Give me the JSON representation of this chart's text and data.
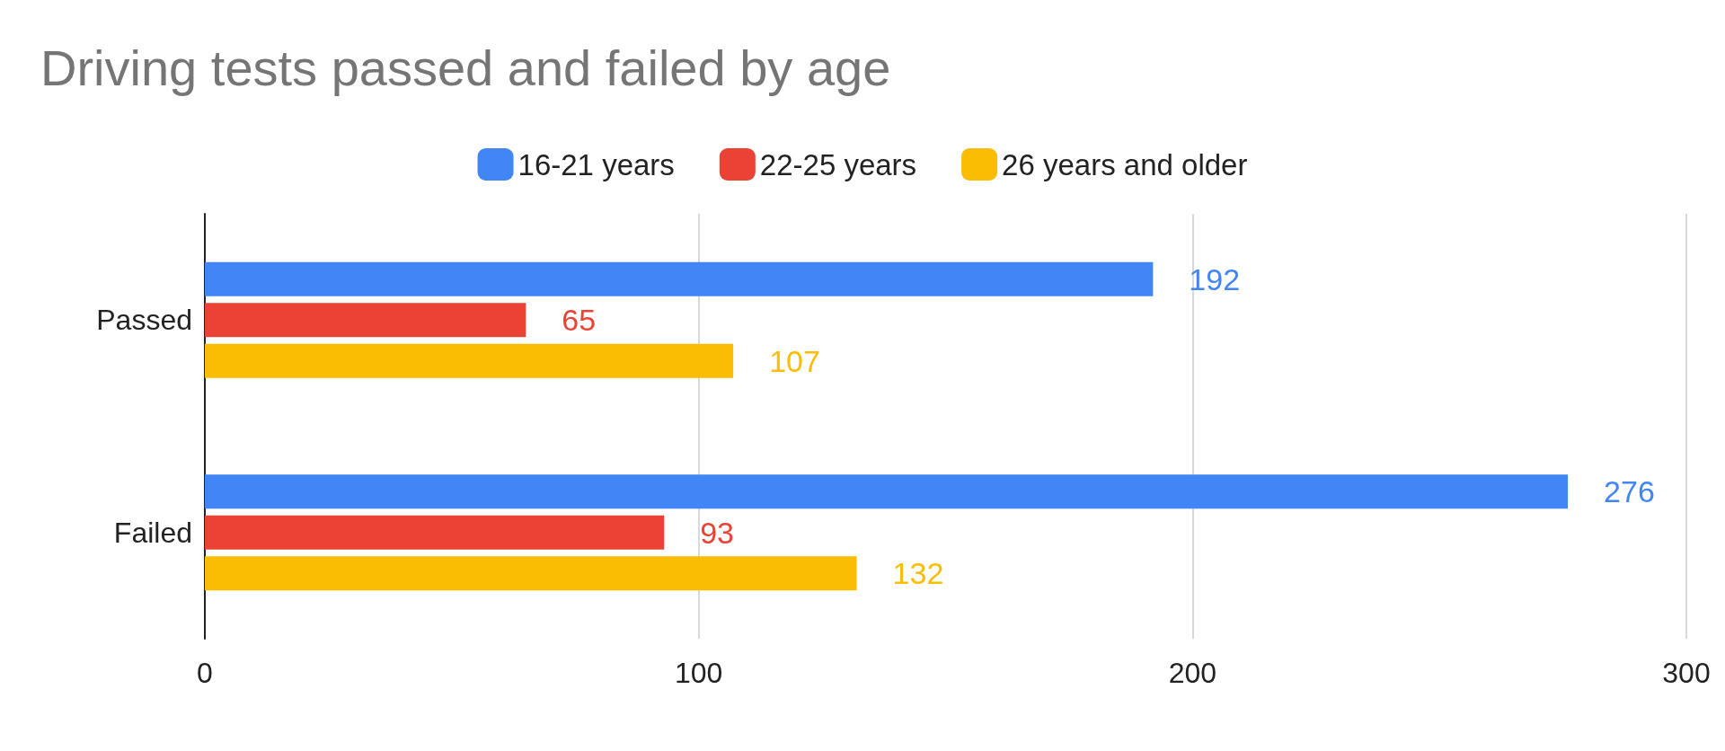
{
  "chart_data": {
    "type": "bar",
    "orientation": "horizontal",
    "title": "Driving tests passed and failed by age",
    "categories": [
      "Passed",
      "Failed"
    ],
    "series": [
      {
        "name": "16-21 years",
        "color": "#4285f4",
        "values": [
          192,
          276
        ]
      },
      {
        "name": "22-25 years",
        "color": "#ea4335",
        "values": [
          65,
          93
        ]
      },
      {
        "name": "26 years and older",
        "color": "#fbbc04",
        "values": [
          107,
          132
        ]
      }
    ],
    "xlim": [
      0,
      300
    ],
    "xticks": [
      0,
      100,
      200,
      300
    ],
    "grid": "x",
    "legend": "top",
    "data_labels": true
  }
}
